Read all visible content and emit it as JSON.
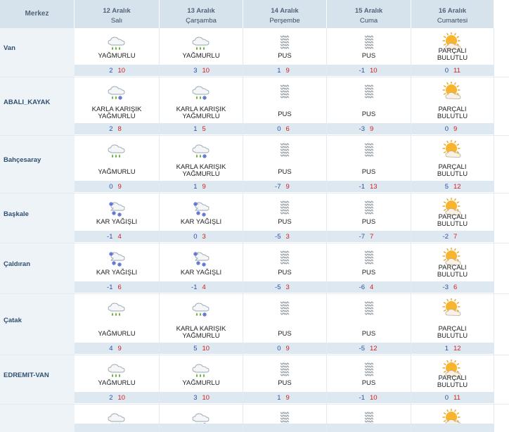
{
  "header": {
    "merkez_label": "Merkez",
    "days": [
      {
        "date": "12 Aralık",
        "weekday": "Salı"
      },
      {
        "date": "13 Aralık",
        "weekday": "Çarşamba"
      },
      {
        "date": "14 Aralık",
        "weekday": "Perşembe"
      },
      {
        "date": "15 Aralık",
        "weekday": "Cuma"
      },
      {
        "date": "16 Aralık",
        "weekday": "Cumartesi"
      }
    ]
  },
  "colors": {
    "header_bg": "#d6e2ec",
    "temp_band": "#dde8f1",
    "min_temp": "#2a4ea6",
    "max_temp": "#d02020"
  },
  "cities": [
    {
      "name": "Van",
      "days": [
        {
          "icon": "rain-icon",
          "condition": "YAĞMURLU",
          "min": "2",
          "max": "10"
        },
        {
          "icon": "rain-icon",
          "condition": "YAĞMURLU",
          "min": "3",
          "max": "10"
        },
        {
          "icon": "fog-icon",
          "condition": "PUS",
          "min": "1",
          "max": "9"
        },
        {
          "icon": "fog-icon",
          "condition": "PUS",
          "min": "-1",
          "max": "10"
        },
        {
          "icon": "partly-cloudy-icon",
          "condition": "PARÇALI BULUTLU",
          "min": "0",
          "max": "11"
        }
      ]
    },
    {
      "name": "ABALI_KAYAK",
      "days": [
        {
          "icon": "sleet-icon",
          "condition": "KARLA KARIŞIK YAĞMURLU",
          "min": "2",
          "max": "8"
        },
        {
          "icon": "sleet-icon",
          "condition": "KARLA KARIŞIK YAĞMURLU",
          "min": "1",
          "max": "5"
        },
        {
          "icon": "fog-icon",
          "condition": "PUS",
          "min": "0",
          "max": "6"
        },
        {
          "icon": "fog-icon",
          "condition": "PUS",
          "min": "-3",
          "max": "9"
        },
        {
          "icon": "partly-cloudy-icon",
          "condition": "PARÇALI BULUTLU",
          "min": "0",
          "max": "9"
        }
      ]
    },
    {
      "name": "Bahçesaray",
      "days": [
        {
          "icon": "rain-icon",
          "condition": "YAĞMURLU",
          "min": "0",
          "max": "9"
        },
        {
          "icon": "sleet-icon",
          "condition": "KARLA KARIŞIK YAĞMURLU",
          "min": "1",
          "max": "9"
        },
        {
          "icon": "fog-icon",
          "condition": "PUS",
          "min": "-7",
          "max": "9"
        },
        {
          "icon": "fog-icon",
          "condition": "PUS",
          "min": "-1",
          "max": "13"
        },
        {
          "icon": "partly-cloudy-icon",
          "condition": "PARÇALI BULUTLU",
          "min": "5",
          "max": "12"
        }
      ]
    },
    {
      "name": "Başkale",
      "days": [
        {
          "icon": "snow-icon",
          "condition": "KAR YAĞIŞLI",
          "min": "-1",
          "max": "4"
        },
        {
          "icon": "snow-icon",
          "condition": "KAR YAĞIŞLI",
          "min": "0",
          "max": "3"
        },
        {
          "icon": "fog-icon",
          "condition": "PUS",
          "min": "-5",
          "max": "3"
        },
        {
          "icon": "fog-icon",
          "condition": "PUS",
          "min": "-7",
          "max": "7"
        },
        {
          "icon": "partly-cloudy-icon",
          "condition": "PARÇALI BULUTLU",
          "min": "-2",
          "max": "7"
        }
      ]
    },
    {
      "name": "Çaldıran",
      "days": [
        {
          "icon": "snow-icon",
          "condition": "KAR YAĞIŞLI",
          "min": "-1",
          "max": "6"
        },
        {
          "icon": "snow-icon",
          "condition": "KAR YAĞIŞLI",
          "min": "-1",
          "max": "4"
        },
        {
          "icon": "fog-icon",
          "condition": "PUS",
          "min": "-5",
          "max": "3"
        },
        {
          "icon": "fog-icon",
          "condition": "PUS",
          "min": "-6",
          "max": "4"
        },
        {
          "icon": "partly-cloudy-icon",
          "condition": "PARÇALI BULUTLU",
          "min": "-3",
          "max": "6"
        }
      ]
    },
    {
      "name": "Çatak",
      "days": [
        {
          "icon": "rain-icon",
          "condition": "YAĞMURLU",
          "min": "4",
          "max": "9"
        },
        {
          "icon": "sleet-icon",
          "condition": "KARLA KARIŞIK YAĞMURLU",
          "min": "5",
          "max": "10"
        },
        {
          "icon": "fog-icon",
          "condition": "PUS",
          "min": "0",
          "max": "9"
        },
        {
          "icon": "fog-icon",
          "condition": "PUS",
          "min": "-5",
          "max": "12"
        },
        {
          "icon": "partly-cloudy-icon",
          "condition": "PARÇALI BULUTLU",
          "min": "1",
          "max": "12"
        }
      ]
    },
    {
      "name": "EDREMIT-VAN",
      "days": [
        {
          "icon": "rain-icon",
          "condition": "YAĞMURLU",
          "min": "2",
          "max": "10"
        },
        {
          "icon": "rain-icon",
          "condition": "YAĞMURLU",
          "min": "3",
          "max": "10"
        },
        {
          "icon": "fog-icon",
          "condition": "PUS",
          "min": "1",
          "max": "9"
        },
        {
          "icon": "fog-icon",
          "condition": "PUS",
          "min": "-1",
          "max": "10"
        },
        {
          "icon": "partly-cloudy-icon",
          "condition": "PARÇALI BULUTLU",
          "min": "0",
          "max": "11"
        }
      ]
    },
    {
      "name": "",
      "days": [
        {
          "icon": "rain-icon",
          "condition": "",
          "min": "",
          "max": ""
        },
        {
          "icon": "sleet-icon",
          "condition": "",
          "min": "",
          "max": ""
        },
        {
          "icon": "fog-icon",
          "condition": "",
          "min": "",
          "max": ""
        },
        {
          "icon": "fog-icon",
          "condition": "",
          "min": "",
          "max": ""
        },
        {
          "icon": "partly-cloudy-icon",
          "condition": "",
          "min": "",
          "max": ""
        }
      ]
    }
  ]
}
